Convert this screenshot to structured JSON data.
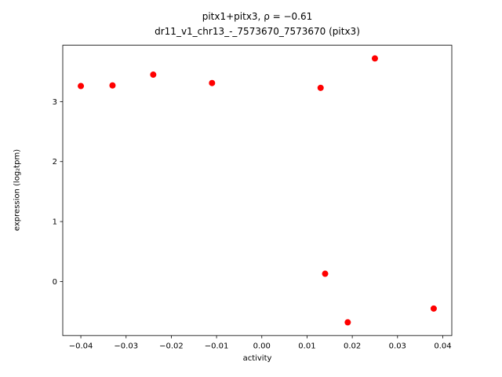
{
  "chart_data": {
    "type": "scatter",
    "title_line1": "pitx1+pitx3, ρ = −0.61",
    "title_line2": "dr11_v1_chr13_-_7573670_7573670 (pitx3)",
    "xlabel": "activity",
    "ylabel": "expression (log₂tpm)",
    "marker_color": "#ff0000",
    "axis_color": "#000000",
    "legend": "none",
    "grid": false,
    "xlim": [
      -0.044,
      0.042
    ],
    "ylim": [
      -0.9,
      3.94
    ],
    "xticks": [
      -0.04,
      -0.03,
      -0.02,
      -0.01,
      0.0,
      0.01,
      0.02,
      0.03,
      0.04
    ],
    "yticks": [
      0,
      1,
      2,
      3
    ],
    "points": [
      {
        "x": -0.04,
        "y": 3.26
      },
      {
        "x": -0.033,
        "y": 3.27
      },
      {
        "x": -0.024,
        "y": 3.45
      },
      {
        "x": -0.011,
        "y": 3.31
      },
      {
        "x": 0.013,
        "y": 3.23
      },
      {
        "x": 0.025,
        "y": 3.72
      },
      {
        "x": 0.014,
        "y": 0.13
      },
      {
        "x": 0.019,
        "y": -0.68
      },
      {
        "x": 0.038,
        "y": -0.45
      }
    ]
  }
}
